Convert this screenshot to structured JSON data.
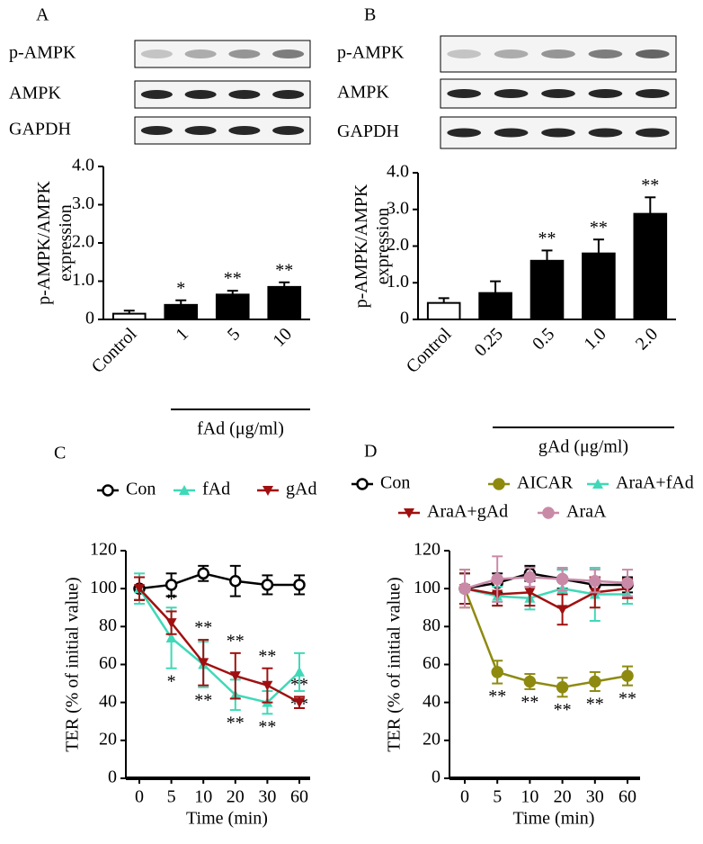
{
  "chart_data": [
    {
      "type": "bar",
      "panel": "A",
      "blots": [
        "p-AMPK",
        "AMPK",
        "GAPDH"
      ],
      "ylabel": [
        "p-AMPK/AMPK",
        "expression"
      ],
      "xlabel": "fAd (μg/ml)",
      "categories": [
        "Control",
        "1",
        "5",
        "10"
      ],
      "values": [
        0.15,
        0.38,
        0.65,
        0.85
      ],
      "errors": [
        0.08,
        0.12,
        0.1,
        0.12
      ],
      "annotations": [
        null,
        "*",
        "**",
        "**"
      ],
      "colors": [
        "#ffffff",
        "#000000",
        "#000000",
        "#000000"
      ],
      "ylim": [
        0,
        4
      ],
      "yticks": [
        0,
        {
          "value": 1,
          "label": "1.0"
        },
        {
          "value": 2,
          "label": "2.0"
        },
        {
          "value": 3,
          "label": "3.0"
        },
        {
          "value": 4,
          "label": "4.0"
        }
      ]
    },
    {
      "type": "bar",
      "panel": "B",
      "blots": [
        "p-AMPK",
        "AMPK",
        "GAPDH"
      ],
      "ylabel": [
        "p-AMPK/AMPK",
        "expression"
      ],
      "xlabel": "gAd (μg/ml)",
      "categories": [
        "Control",
        "0.25",
        "0.5",
        "1.0",
        "2.0"
      ],
      "values": [
        0.45,
        0.72,
        1.6,
        1.8,
        2.88
      ],
      "errors": [
        0.13,
        0.32,
        0.28,
        0.38,
        0.45
      ],
      "annotations": [
        null,
        null,
        "**",
        "**",
        "**"
      ],
      "colors": [
        "#ffffff",
        "#000000",
        "#000000",
        "#000000",
        "#000000"
      ],
      "ylim": [
        0,
        4
      ],
      "yticks": [
        0,
        {
          "value": 1,
          "label": "1.0"
        },
        {
          "value": 2,
          "label": "2.0"
        },
        {
          "value": 3,
          "label": "3.0"
        },
        {
          "value": 4,
          "label": "4.0"
        }
      ]
    },
    {
      "type": "line",
      "panel": "C",
      "ylabel": "TER (% of initial value)",
      "xlabel": "Time (min)",
      "categories": [
        "0",
        "5",
        "10",
        "20",
        "30",
        "60"
      ],
      "ylim": [
        0,
        120
      ],
      "yticks": [
        0,
        20,
        40,
        60,
        80,
        100,
        120
      ],
      "series": [
        {
          "name": "Con",
          "color": "#000000",
          "marker": "open-circle",
          "values": [
            100,
            102,
            108,
            104,
            102,
            102
          ],
          "errors": [
            6,
            6,
            4,
            8,
            5,
            5
          ]
        },
        {
          "name": "fAd",
          "color": "#3fd9b8",
          "marker": "triangle-up",
          "values": [
            100,
            74,
            60,
            44,
            40,
            56
          ],
          "errors": [
            8,
            16,
            12,
            8,
            6,
            10
          ],
          "stars": [
            null,
            "*",
            "**",
            "**",
            "**",
            "**"
          ],
          "stars_side": "below"
        },
        {
          "name": "gAd",
          "color": "#a01010",
          "marker": "triangle-down",
          "values": [
            100,
            82,
            61,
            54,
            49,
            40
          ],
          "errors": [
            6,
            6,
            12,
            12,
            9,
            3
          ],
          "stars": [
            null,
            "*",
            "**",
            "**",
            "**",
            "**"
          ],
          "stars_side": "above"
        }
      ]
    },
    {
      "type": "line",
      "panel": "D",
      "ylabel": "TER (% of initial value)",
      "xlabel": "Time (min)",
      "categories": [
        "0",
        "5",
        "10",
        "20",
        "30",
        "60"
      ],
      "ylim": [
        0,
        120
      ],
      "yticks": [
        0,
        20,
        40,
        60,
        80,
        100,
        120
      ],
      "series": [
        {
          "name": "Con",
          "color": "#000000",
          "marker": "open-circle",
          "values": [
            100,
            103,
            108,
            105,
            102,
            102
          ],
          "errors": [
            8,
            5,
            4,
            5,
            4,
            4
          ]
        },
        {
          "name": "AICAR",
          "color": "#8e8a10",
          "marker": "circle",
          "values": [
            100,
            56,
            51,
            48,
            51,
            54
          ],
          "errors": [
            10,
            6,
            4,
            5,
            5,
            5
          ],
          "stars": [
            null,
            "**",
            "**",
            "**",
            "**",
            "**"
          ],
          "stars_side": "below"
        },
        {
          "name": "AraA+fAd",
          "color": "#3fd9b8",
          "marker": "triangle-up",
          "values": [
            100,
            96,
            95,
            100,
            97,
            97
          ],
          "errors": [
            8,
            5,
            6,
            10,
            14,
            5
          ]
        },
        {
          "name": "AraA+gAd",
          "color": "#a01010",
          "marker": "triangle-down",
          "values": [
            100,
            97,
            98,
            89,
            98,
            100
          ],
          "errors": [
            8,
            6,
            7,
            8,
            8,
            5
          ]
        },
        {
          "name": "AraA",
          "color": "#c98aa8",
          "marker": "circle",
          "values": [
            100,
            105,
            106,
            105,
            104,
            103
          ],
          "errors": [
            10,
            12,
            5,
            6,
            6,
            7
          ]
        }
      ]
    }
  ]
}
